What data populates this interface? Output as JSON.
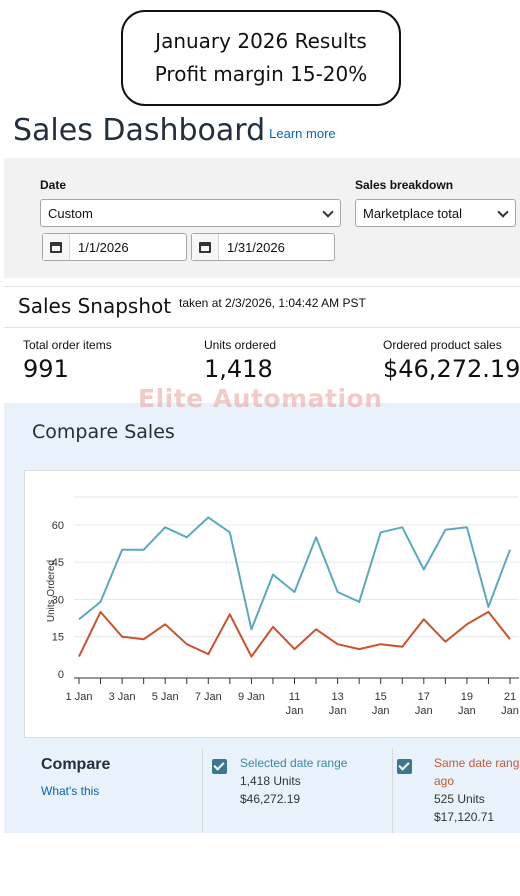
{
  "callout": {
    "line1": "January 2026 Results",
    "line2": "Profit margin 15-20%"
  },
  "header": {
    "title": "Sales Dashboard",
    "learn_more": "Learn more"
  },
  "filters": {
    "date_label": "Date",
    "date_select_value": "Custom",
    "start_date": "1/1/2026",
    "end_date": "1/31/2026",
    "breakdown_label": "Sales breakdown",
    "breakdown_value": "Marketplace total"
  },
  "snapshot": {
    "title": "Sales Snapshot",
    "taken_at": "taken at 2/3/2026, 1:04:42 AM PST",
    "metrics": [
      {
        "label": "Total order items",
        "value": "991"
      },
      {
        "label": "Units ordered",
        "value": "1,418"
      },
      {
        "label": "Ordered product sales",
        "value": "$46,272.19"
      }
    ]
  },
  "watermark": "Elite Automation",
  "compare_sales": {
    "title": "Compare Sales"
  },
  "chart_data": {
    "type": "line",
    "ylabel": "Units Ordered",
    "xlabel": "",
    "ylim": [
      0,
      70
    ],
    "y_ticks": [
      "0",
      "15",
      "30",
      "45",
      "60"
    ],
    "x_ticks": [
      {
        "line1": "1 Jan",
        "line2": ""
      },
      {
        "line1": "3 Jan",
        "line2": ""
      },
      {
        "line1": "5 Jan",
        "line2": ""
      },
      {
        "line1": "7 Jan",
        "line2": ""
      },
      {
        "line1": "9 Jan",
        "line2": ""
      },
      {
        "line1": "11",
        "line2": "Jan"
      },
      {
        "line1": "13",
        "line2": "Jan"
      },
      {
        "line1": "15",
        "line2": "Jan"
      },
      {
        "line1": "17",
        "line2": "Jan"
      },
      {
        "line1": "19",
        "line2": "Jan"
      },
      {
        "line1": "21",
        "line2": "Jan"
      }
    ],
    "x": [
      1,
      2,
      3,
      4,
      5,
      6,
      7,
      8,
      9,
      10,
      11,
      12,
      13,
      14,
      15,
      16,
      17,
      18,
      19,
      20,
      21
    ],
    "series": [
      {
        "color": "#5aa9bf",
        "values": [
          22,
          29,
          50,
          50,
          59,
          55,
          63,
          57,
          18,
          40,
          33,
          55,
          33,
          29,
          57,
          59,
          42,
          58,
          59,
          27,
          50
        ]
      },
      {
        "color": "#c9532f",
        "values": [
          7,
          25,
          15,
          14,
          20,
          12,
          8,
          24,
          7,
          19,
          10,
          18,
          12,
          10,
          12,
          11,
          22,
          13,
          20,
          25,
          14
        ]
      }
    ]
  },
  "compare": {
    "label": "Compare",
    "whats_this": "What's this",
    "selected": {
      "title": "Selected date range",
      "units": "1,418 Units",
      "sales": "$46,272.19",
      "color": "#3a8aa3"
    },
    "previous": {
      "title_line1": "Same date rang",
      "title_line2": "ago",
      "units": "525 Units",
      "sales": "$17,120.71",
      "color": "#c45a3b"
    }
  }
}
